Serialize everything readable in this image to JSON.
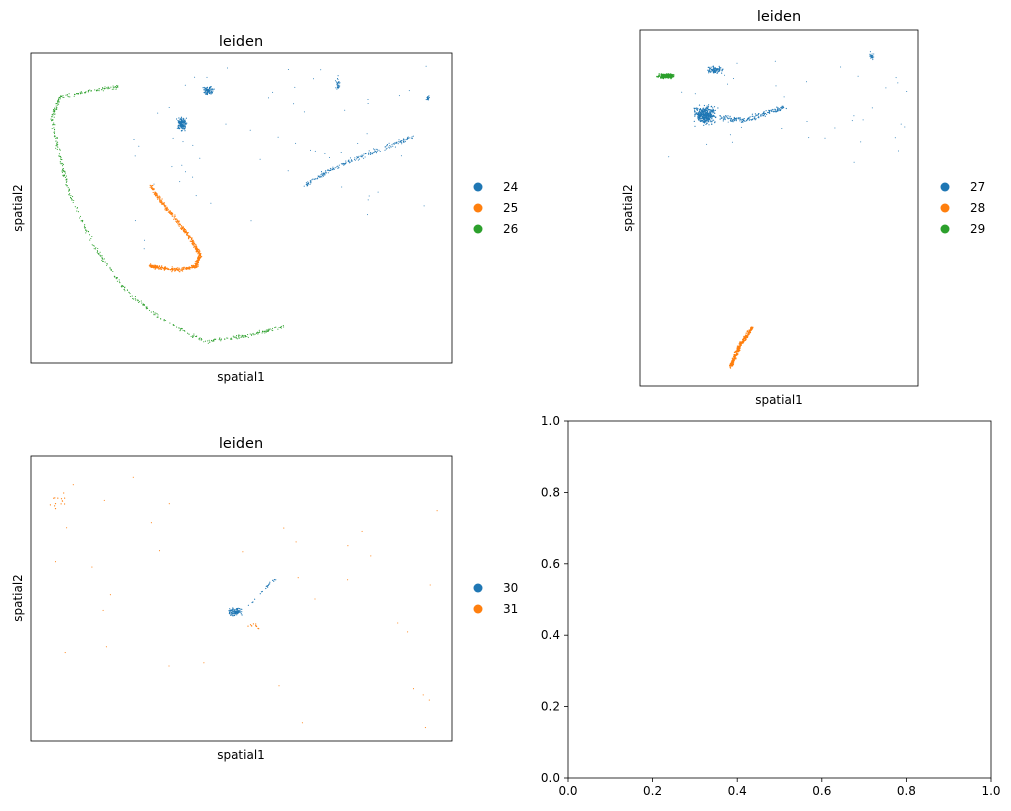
{
  "chart_data": [
    {
      "type": "scatter",
      "title": "leiden",
      "xlabel": "spatial1",
      "ylabel": "spatial2",
      "legend_placement": "right",
      "grid": false,
      "series": [
        {
          "name": "24",
          "color": "#1f77b4"
        },
        {
          "name": "25",
          "color": "#ff7f0e"
        },
        {
          "name": "26",
          "color": "#2ca02c"
        }
      ]
    },
    {
      "type": "scatter",
      "title": "leiden",
      "xlabel": "spatial1",
      "ylabel": "spatial2",
      "legend_placement": "right",
      "grid": false,
      "series": [
        {
          "name": "27",
          "color": "#1f77b4"
        },
        {
          "name": "28",
          "color": "#ff7f0e"
        },
        {
          "name": "29",
          "color": "#2ca02c"
        }
      ]
    },
    {
      "type": "scatter",
      "title": "leiden",
      "xlabel": "spatial1",
      "ylabel": "spatial2",
      "legend_placement": "right",
      "grid": false,
      "series": [
        {
          "name": "30",
          "color": "#1f77b4"
        },
        {
          "name": "31",
          "color": "#ff7f0e"
        }
      ]
    },
    {
      "type": "line",
      "title": "",
      "xlabel": "",
      "ylabel": "",
      "xlim": [
        0,
        1
      ],
      "ylim": [
        0,
        1
      ],
      "xticks": [
        "0.0",
        "0.2",
        "0.4",
        "0.6",
        "0.8",
        "1.0"
      ],
      "yticks": [
        "0.0",
        "0.2",
        "0.4",
        "0.6",
        "0.8",
        "1.0"
      ],
      "series": []
    }
  ]
}
